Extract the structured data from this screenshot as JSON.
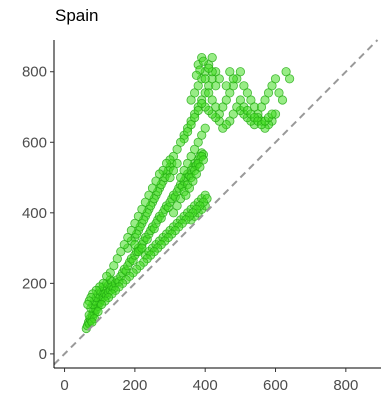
{
  "chart_data": {
    "type": "scatter",
    "title": "Spain",
    "xlabel": "",
    "ylabel": "",
    "xlim": [
      -30,
      900
    ],
    "ylim": [
      -40,
      890
    ],
    "x_ticks": [
      0,
      200,
      400,
      600,
      800
    ],
    "y_ticks": [
      0,
      200,
      400,
      600,
      800
    ],
    "grid": false,
    "legend": "none",
    "reference_line": "y = x (dashed)",
    "point_color": "#44dd22",
    "point_edge_color": "#22aa11",
    "ref_line_color": "#999999",
    "series": [
      {
        "points": [
          [
            62,
            72
          ],
          [
            65,
            80
          ],
          [
            68,
            90
          ],
          [
            70,
            85
          ],
          [
            72,
            100
          ],
          [
            75,
            95
          ],
          [
            78,
            110
          ],
          [
            80,
            105
          ],
          [
            82,
            120
          ],
          [
            85,
            115
          ],
          [
            88,
            130
          ],
          [
            90,
            125
          ],
          [
            92,
            140
          ],
          [
            95,
            135
          ],
          [
            98,
            150
          ],
          [
            100,
            145
          ],
          [
            102,
            160
          ],
          [
            105,
            155
          ],
          [
            70,
            110
          ],
          [
            75,
            130
          ],
          [
            80,
            140
          ],
          [
            85,
            150
          ],
          [
            90,
            160
          ],
          [
            95,
            170
          ],
          [
            100,
            180
          ],
          [
            105,
            175
          ],
          [
            110,
            190
          ],
          [
            115,
            185
          ],
          [
            120,
            200
          ],
          [
            125,
            195
          ],
          [
            130,
            210
          ],
          [
            135,
            205
          ],
          [
            110,
            160
          ],
          [
            115,
            170
          ],
          [
            120,
            165
          ],
          [
            125,
            175
          ],
          [
            130,
            180
          ],
          [
            135,
            190
          ],
          [
            140,
            185
          ],
          [
            145,
            200
          ],
          [
            150,
            210
          ],
          [
            155,
            205
          ],
          [
            160,
            220
          ],
          [
            165,
            230
          ],
          [
            170,
            240
          ],
          [
            175,
            235
          ],
          [
            180,
            250
          ],
          [
            185,
            260
          ],
          [
            190,
            270
          ],
          [
            195,
            265
          ],
          [
            200,
            280
          ],
          [
            205,
            290
          ],
          [
            210,
            300
          ],
          [
            215,
            295
          ],
          [
            220,
            310
          ],
          [
            225,
            320
          ],
          [
            230,
            330
          ],
          [
            235,
            325
          ],
          [
            240,
            340
          ],
          [
            245,
            350
          ],
          [
            250,
            360
          ],
          [
            255,
            355
          ],
          [
            260,
            370
          ],
          [
            265,
            380
          ],
          [
            270,
            390
          ],
          [
            275,
            385
          ],
          [
            280,
            400
          ],
          [
            285,
            410
          ],
          [
            290,
            420
          ],
          [
            295,
            415
          ],
          [
            300,
            430
          ],
          [
            305,
            440
          ],
          [
            310,
            450
          ],
          [
            315,
            445
          ],
          [
            320,
            460
          ],
          [
            325,
            470
          ],
          [
            330,
            480
          ],
          [
            335,
            475
          ],
          [
            340,
            490
          ],
          [
            345,
            500
          ],
          [
            350,
            510
          ],
          [
            355,
            505
          ],
          [
            360,
            520
          ],
          [
            365,
            530
          ],
          [
            370,
            540
          ],
          [
            375,
            535
          ],
          [
            380,
            550
          ],
          [
            385,
            560
          ],
          [
            390,
            570
          ],
          [
            395,
            565
          ],
          [
            210,
            350
          ],
          [
            220,
            370
          ],
          [
            230,
            390
          ],
          [
            240,
            410
          ],
          [
            250,
            430
          ],
          [
            260,
            450
          ],
          [
            270,
            470
          ],
          [
            280,
            490
          ],
          [
            290,
            510
          ],
          [
            300,
            530
          ],
          [
            200,
            330
          ],
          [
            205,
            340
          ],
          [
            215,
            360
          ],
          [
            225,
            380
          ],
          [
            235,
            400
          ],
          [
            245,
            420
          ],
          [
            255,
            440
          ],
          [
            265,
            460
          ],
          [
            275,
            480
          ],
          [
            285,
            500
          ],
          [
            295,
            520
          ],
          [
            305,
            540
          ],
          [
            180,
            300
          ],
          [
            190,
            320
          ],
          [
            200,
            310
          ],
          [
            210,
            290
          ],
          [
            220,
            300
          ],
          [
            230,
            280
          ],
          [
            240,
            290
          ],
          [
            250,
            300
          ],
          [
            260,
            310
          ],
          [
            270,
            320
          ],
          [
            280,
            330
          ],
          [
            290,
            340
          ],
          [
            300,
            350
          ],
          [
            310,
            360
          ],
          [
            320,
            370
          ],
          [
            330,
            380
          ],
          [
            340,
            390
          ],
          [
            350,
            400
          ],
          [
            360,
            410
          ],
          [
            370,
            420
          ],
          [
            380,
            430
          ],
          [
            390,
            440
          ],
          [
            400,
            450
          ],
          [
            360,
            380
          ],
          [
            370,
            390
          ],
          [
            380,
            400
          ],
          [
            390,
            410
          ],
          [
            400,
            420
          ],
          [
            310,
            400
          ],
          [
            320,
            420
          ],
          [
            330,
            440
          ],
          [
            340,
            460
          ],
          [
            350,
            480
          ],
          [
            360,
            500
          ],
          [
            370,
            520
          ],
          [
            380,
            540
          ],
          [
            390,
            560
          ],
          [
            330,
            500
          ],
          [
            340,
            520
          ],
          [
            350,
            540
          ],
          [
            360,
            560
          ],
          [
            370,
            580
          ],
          [
            380,
            600
          ],
          [
            390,
            620
          ],
          [
            400,
            640
          ],
          [
            320,
            540
          ],
          [
            310,
            520
          ],
          [
            300,
            500
          ],
          [
            340,
            620
          ],
          [
            350,
            640
          ],
          [
            360,
            660
          ],
          [
            370,
            680
          ],
          [
            380,
            700
          ],
          [
            390,
            720
          ],
          [
            400,
            740
          ],
          [
            410,
            760
          ],
          [
            420,
            780
          ],
          [
            430,
            800
          ],
          [
            360,
            720
          ],
          [
            370,
            740
          ],
          [
            380,
            760
          ],
          [
            390,
            780
          ],
          [
            400,
            800
          ],
          [
            410,
            820
          ],
          [
            420,
            840
          ],
          [
            380,
            820
          ],
          [
            390,
            840
          ],
          [
            400,
            780
          ],
          [
            410,
            740
          ],
          [
            420,
            720
          ],
          [
            430,
            700
          ],
          [
            440,
            680
          ],
          [
            450,
            700
          ],
          [
            460,
            720
          ],
          [
            470,
            740
          ],
          [
            480,
            760
          ],
          [
            490,
            780
          ],
          [
            500,
            800
          ],
          [
            510,
            760
          ],
          [
            520,
            740
          ],
          [
            530,
            720
          ],
          [
            540,
            700
          ],
          [
            550,
            680
          ],
          [
            560,
            700
          ],
          [
            570,
            720
          ],
          [
            580,
            740
          ],
          [
            590,
            760
          ],
          [
            600,
            780
          ],
          [
            610,
            740
          ],
          [
            620,
            720
          ],
          [
            630,
            800
          ],
          [
            640,
            780
          ],
          [
            600,
            680
          ],
          [
            590,
            660
          ],
          [
            580,
            650
          ],
          [
            570,
            640
          ],
          [
            560,
            660
          ],
          [
            550,
            670
          ],
          [
            540,
            650
          ],
          [
            530,
            660
          ],
          [
            520,
            670
          ],
          [
            510,
            680
          ],
          [
            500,
            690
          ],
          [
            490,
            700
          ],
          [
            480,
            680
          ],
          [
            470,
            660
          ],
          [
            460,
            650
          ],
          [
            450,
            640
          ],
          [
            440,
            660
          ],
          [
            430,
            670
          ],
          [
            420,
            680
          ],
          [
            410,
            690
          ],
          [
            400,
            700
          ],
          [
            390,
            710
          ],
          [
            380,
            690
          ],
          [
            370,
            670
          ],
          [
            360,
            650
          ],
          [
            350,
            630
          ],
          [
            340,
            610
          ],
          [
            330,
            600
          ],
          [
            320,
            580
          ],
          [
            310,
            560
          ],
          [
            300,
            550
          ],
          [
            290,
            540
          ],
          [
            280,
            520
          ],
          [
            270,
            510
          ],
          [
            260,
            490
          ],
          [
            250,
            470
          ],
          [
            240,
            450
          ],
          [
            230,
            430
          ],
          [
            220,
            410
          ],
          [
            210,
            390
          ],
          [
            200,
            370
          ],
          [
            190,
            350
          ],
          [
            180,
            330
          ],
          [
            170,
            310
          ],
          [
            160,
            290
          ],
          [
            150,
            270
          ],
          [
            140,
            250
          ],
          [
            130,
            230
          ],
          [
            120,
            220
          ],
          [
            110,
            200
          ],
          [
            100,
            190
          ],
          [
            90,
            180
          ],
          [
            80,
            170
          ],
          [
            75,
            160
          ],
          [
            70,
            150
          ],
          [
            66,
            140
          ],
          [
            345,
            450
          ],
          [
            355,
            470
          ],
          [
            365,
            490
          ],
          [
            375,
            510
          ],
          [
            385,
            530
          ],
          [
            395,
            550
          ],
          [
            405,
            440
          ],
          [
            395,
            430
          ],
          [
            385,
            420
          ],
          [
            375,
            410
          ],
          [
            365,
            400
          ],
          [
            355,
            390
          ],
          [
            345,
            380
          ],
          [
            335,
            370
          ],
          [
            325,
            360
          ],
          [
            315,
            350
          ],
          [
            305,
            340
          ],
          [
            295,
            330
          ],
          [
            285,
            320
          ],
          [
            275,
            310
          ],
          [
            265,
            300
          ],
          [
            255,
            290
          ],
          [
            245,
            280
          ],
          [
            235,
            270
          ],
          [
            225,
            260
          ],
          [
            215,
            250
          ],
          [
            205,
            240
          ],
          [
            195,
            230
          ],
          [
            185,
            220
          ],
          [
            175,
            210
          ],
          [
            165,
            200
          ],
          [
            155,
            190
          ],
          [
            145,
            180
          ],
          [
            135,
            170
          ],
          [
            125,
            160
          ],
          [
            115,
            150
          ],
          [
            105,
            140
          ],
          [
            95,
            120
          ],
          [
            85,
            100
          ],
          [
            78,
            90
          ],
          [
            500,
            720
          ],
          [
            510,
            700
          ],
          [
            520,
            690
          ],
          [
            530,
            680
          ],
          [
            540,
            670
          ],
          [
            550,
            660
          ],
          [
            560,
            650
          ],
          [
            570,
            660
          ],
          [
            580,
            670
          ],
          [
            590,
            680
          ],
          [
            470,
            800
          ],
          [
            480,
            780
          ],
          [
            460,
            760
          ],
          [
            440,
            780
          ],
          [
            430,
            760
          ],
          [
            420,
            800
          ],
          [
            410,
            810
          ],
          [
            395,
            830
          ],
          [
            385,
            805
          ],
          [
            375,
            790
          ]
        ]
      }
    ]
  }
}
